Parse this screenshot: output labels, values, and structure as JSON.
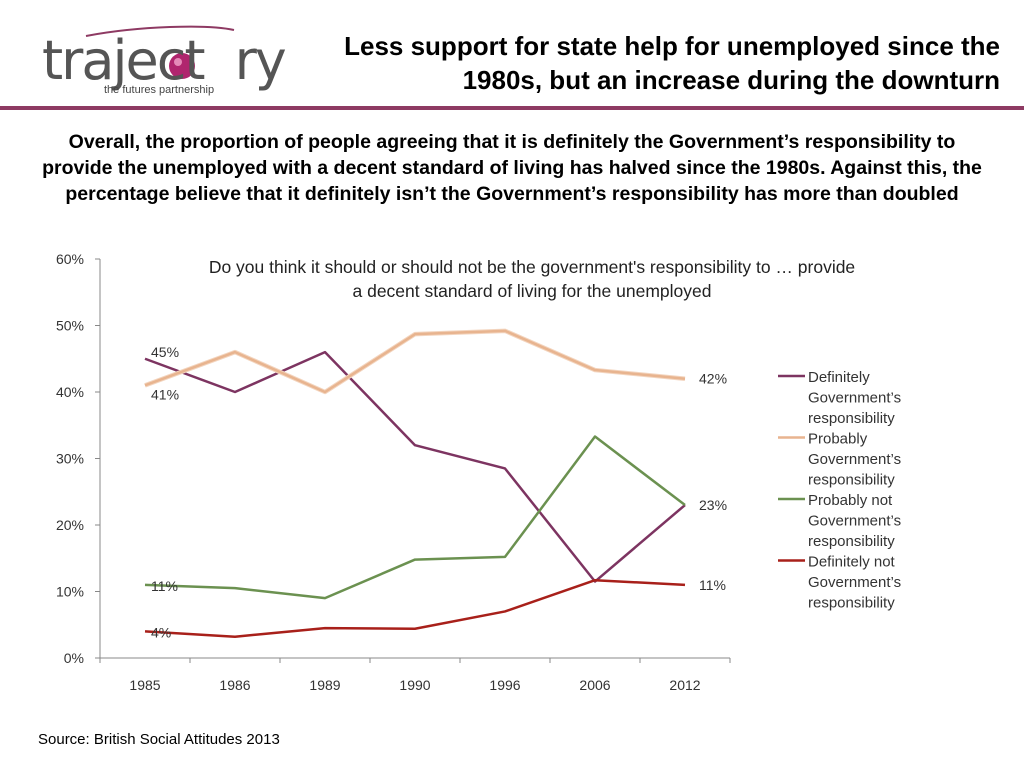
{
  "logo": {
    "word": "trajectory",
    "tagline": "the futures partnership",
    "accent_color": "#8e3a63"
  },
  "header": {
    "title": "Less support for state help for unemployed since the 1980s, but an increase during the downturn"
  },
  "summary": "Overall, the proportion of people agreeing that it is definitely the Government’s responsibility to provide the unemployed with a decent standard of living has halved since the 1980s. Against this, the percentage believe that it definitely isn’t the Government’s responsibility has more than doubled",
  "source": "Source: British Social Attitudes 2013",
  "chart_data": {
    "type": "line",
    "title_lines": [
      "Do you think it should or should not be the government's responsibility to … provide",
      "a decent standard of living for the unemployed"
    ],
    "categories": [
      "1985",
      "1986",
      "1989",
      "1990",
      "1996",
      "2006",
      "2012"
    ],
    "ylim": [
      0,
      60
    ],
    "yticks": [
      "0%",
      "10%",
      "20%",
      "30%",
      "40%",
      "50%",
      "60%"
    ],
    "grid": false,
    "legend_position": "right",
    "series": [
      {
        "name_lines": [
          "Definitely",
          "Government’s",
          "responsibility"
        ],
        "color": "#7d3461",
        "values": [
          45,
          40,
          46,
          32,
          28.5,
          11.5,
          23
        ],
        "labels": [
          {
            "index": 0,
            "text": "45%"
          }
        ]
      },
      {
        "name_lines": [
          "Probably",
          "Government’s",
          "responsibility"
        ],
        "color": "#e8b48f",
        "values": [
          41,
          46,
          40,
          48.7,
          49.2,
          43.3,
          42
        ],
        "labels": [
          {
            "index": 0,
            "text": "41%"
          },
          {
            "index": 6,
            "text": "42%"
          }
        ]
      },
      {
        "name_lines": [
          "Probably not",
          "Government’s",
          "responsibility"
        ],
        "color": "#6b9150",
        "values": [
          11,
          10.5,
          9,
          14.8,
          15.2,
          33.3,
          23
        ],
        "labels": [
          {
            "index": 0,
            "text": "11%"
          },
          {
            "index": 6,
            "text": "23%"
          }
        ]
      },
      {
        "name_lines": [
          "Definitely not",
          "Government’s",
          "responsibility"
        ],
        "color": "#a8201a",
        "values": [
          4,
          3.2,
          4.5,
          4.4,
          7,
          11.7,
          11
        ],
        "labels": [
          {
            "index": 0,
            "text": "4%"
          },
          {
            "index": 6,
            "text": "11%"
          }
        ]
      }
    ]
  }
}
